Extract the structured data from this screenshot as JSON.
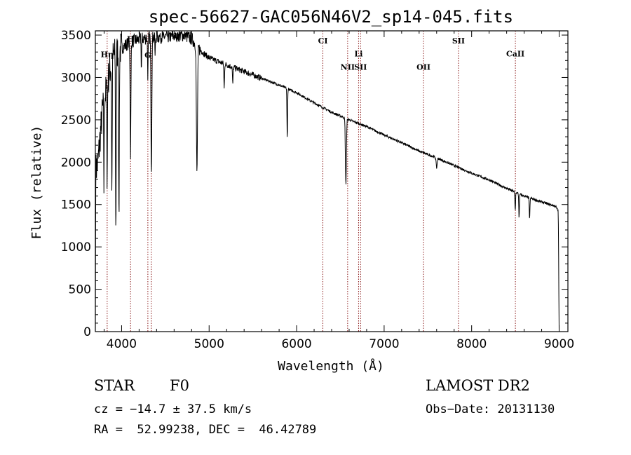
{
  "chart_data": {
    "type": "line",
    "title": "spec-56627-GAC056N46V2_sp14-045.fits",
    "xlabel": "Wavelength (Å)",
    "ylabel": "Flux (relative)",
    "xlim": [
      3700,
      9100
    ],
    "ylim": [
      0,
      3550
    ],
    "x_ticks": [
      4000,
      5000,
      6000,
      7000,
      8000,
      9000
    ],
    "y_ticks": [
      0,
      500,
      1000,
      1500,
      2000,
      2500,
      3000,
      3500
    ],
    "grid": false,
    "line_color": "#000000",
    "marker_color": "#8b1a1a",
    "continuum": [
      [
        3700,
        0
      ],
      [
        3705,
        1900
      ],
      [
        3730,
        2000
      ],
      [
        3780,
        2600
      ],
      [
        3850,
        3000
      ],
      [
        3900,
        3250
      ],
      [
        4000,
        3350
      ],
      [
        4100,
        3420
      ],
      [
        4200,
        3450
      ],
      [
        4300,
        3470
      ],
      [
        4400,
        3480
      ],
      [
        4500,
        3480
      ],
      [
        4600,
        3490
      ],
      [
        4700,
        3500
      ],
      [
        4800,
        3460
      ],
      [
        4900,
        3320
      ],
      [
        5000,
        3230
      ],
      [
        5200,
        3150
      ],
      [
        5400,
        3070
      ],
      [
        5600,
        2990
      ],
      [
        5800,
        2910
      ],
      [
        6000,
        2820
      ],
      [
        6200,
        2700
      ],
      [
        6400,
        2590
      ],
      [
        6600,
        2500
      ],
      [
        6700,
        2460
      ],
      [
        6800,
        2420
      ],
      [
        7000,
        2320
      ],
      [
        7200,
        2230
      ],
      [
        7400,
        2130
      ],
      [
        7600,
        2050
      ],
      [
        7800,
        1960
      ],
      [
        8000,
        1870
      ],
      [
        8200,
        1790
      ],
      [
        8400,
        1690
      ],
      [
        8600,
        1600
      ],
      [
        8800,
        1530
      ],
      [
        8960,
        1480
      ],
      [
        8990,
        1420
      ],
      [
        9000,
        0
      ]
    ],
    "absorption_features": [
      {
        "center": 3798,
        "depth": 1000,
        "width": 4
      },
      {
        "center": 3835,
        "depth": 1200,
        "width": 4
      },
      {
        "center": 3889,
        "depth": 1600,
        "width": 5
      },
      {
        "center": 3934,
        "depth": 2150,
        "width": 5
      },
      {
        "center": 3970,
        "depth": 2100,
        "width": 5
      },
      {
        "center": 4102,
        "depth": 1350,
        "width": 6
      },
      {
        "center": 4226,
        "depth": 350,
        "width": 4
      },
      {
        "center": 4300,
        "depth": 450,
        "width": 5
      },
      {
        "center": 4340,
        "depth": 1550,
        "width": 7
      },
      {
        "center": 4383,
        "depth": 250,
        "width": 4
      },
      {
        "center": 4861,
        "depth": 1500,
        "width": 9
      },
      {
        "center": 5172,
        "depth": 300,
        "width": 5
      },
      {
        "center": 5270,
        "depth": 200,
        "width": 5
      },
      {
        "center": 5893,
        "depth": 600,
        "width": 5
      },
      {
        "center": 6563,
        "depth": 780,
        "width": 8
      },
      {
        "center": 7600,
        "depth": 120,
        "width": 8
      },
      {
        "center": 8498,
        "depth": 220,
        "width": 5
      },
      {
        "center": 8542,
        "depth": 280,
        "width": 5
      },
      {
        "center": 8662,
        "depth": 260,
        "width": 5
      }
    ],
    "line_markers": [
      {
        "label": "Hη",
        "x": 3835,
        "label_y": 3240
      },
      {
        "label": "H",
        "x": 4102,
        "label_y": 3420
      },
      {
        "label": "G",
        "x": 4300,
        "label_y": 3230
      },
      {
        "label": "",
        "x": 4340,
        "label_y": 3100
      },
      {
        "label": "CI",
        "x": 6300,
        "label_y": 3400
      },
      {
        "label": "Li",
        "x": 6708,
        "label_y": 3250
      },
      {
        "label": "NII",
        "x": 6583,
        "label_y": 3090
      },
      {
        "label": "SII",
        "x": 6731,
        "label_y": 3090
      },
      {
        "label": "OII",
        "x": 7450,
        "label_y": 3090
      },
      {
        "label": "SII",
        "x": 7850,
        "label_y": 3400
      },
      {
        "label": "CaII",
        "x": 8500,
        "label_y": 3250
      }
    ]
  },
  "info": {
    "object_type": "STAR",
    "subclass": "F0",
    "survey": "LAMOST DR2",
    "cz": "cz = −14.7 ± 37.5 km/s",
    "obs_date": "Obs−Date: 20131130",
    "coords": "RA =  52.99238, DEC =  46.42789"
  }
}
